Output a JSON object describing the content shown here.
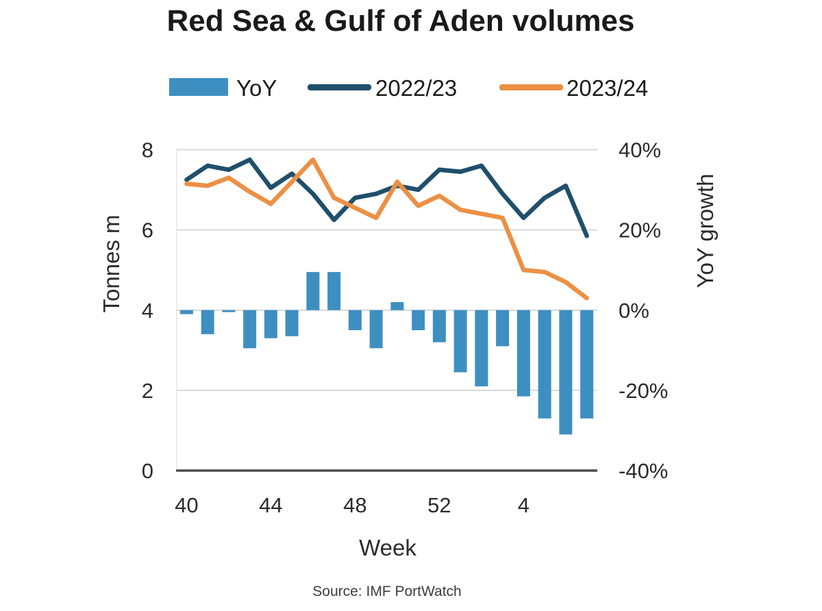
{
  "title": {
    "text": "Red Sea & Gulf of Aden volumes"
  },
  "legend": {
    "items": [
      {
        "label": "YoY",
        "type": "bar",
        "color": "#3e8fc1"
      },
      {
        "label": "2022/23",
        "type": "line",
        "color": "#1f4f6c"
      },
      {
        "label": "2023/24",
        "type": "line",
        "color": "#ec9044"
      }
    ]
  },
  "source": {
    "text": "Source: IMF PortWatch"
  },
  "chart_data": {
    "type": "combo-bar-line",
    "title": "Red Sea & Gulf of Aden volumes",
    "xlabel": "Week",
    "categories": [
      "40",
      "41",
      "42",
      "43",
      "44",
      "45",
      "46",
      "47",
      "48",
      "49",
      "50",
      "51",
      "52",
      "1",
      "2",
      "3",
      "4",
      "5",
      "6",
      "7"
    ],
    "x_ticks": {
      "labels": [
        "40",
        "44",
        "48",
        "52",
        "4"
      ],
      "indices": [
        0,
        4,
        8,
        12,
        16
      ]
    },
    "y_left": {
      "label": "Tonnes m",
      "ticks": [
        "8",
        "6",
        "4",
        "2",
        "0"
      ],
      "range": [
        0,
        8
      ],
      "grid": true
    },
    "y_right": {
      "label": "YoY growth",
      "ticks": [
        "40%",
        "20%",
        "0%",
        "-20%",
        "-40%"
      ],
      "range": [
        -40,
        40
      ]
    },
    "series": [
      {
        "name": "YoY",
        "type": "bar",
        "axis": "right",
        "unit": "%",
        "color": "#3e8fc1",
        "values": [
          -1,
          -6,
          -0.5,
          -9.5,
          -7,
          -6.5,
          9.5,
          9.5,
          -5,
          -9.5,
          2,
          -5,
          -8,
          -15.5,
          -19,
          -9,
          -21.5,
          -27,
          -31,
          -27
        ]
      },
      {
        "name": "2022/23",
        "type": "line",
        "axis": "left",
        "unit": "tonnes m",
        "color": "#1f4f6c",
        "values": [
          7.25,
          7.6,
          7.5,
          7.75,
          7.05,
          7.4,
          6.9,
          6.25,
          6.8,
          6.9,
          7.1,
          7.0,
          7.5,
          7.45,
          7.6,
          6.9,
          6.3,
          6.8,
          7.1,
          5.85
        ]
      },
      {
        "name": "2023/24",
        "type": "line",
        "axis": "left",
        "unit": "tonnes m",
        "color": "#ec9044",
        "values": [
          7.15,
          7.1,
          7.3,
          6.95,
          6.65,
          7.2,
          7.75,
          6.8,
          6.55,
          6.3,
          7.2,
          6.6,
          6.85,
          6.5,
          6.4,
          6.3,
          5.0,
          4.95,
          4.7,
          4.3
        ]
      }
    ],
    "legend_position": "top",
    "colors": {
      "grid": "#d9d9d9",
      "axis_line": "#4d4d4d",
      "tick_text": "#2b2b2b"
    }
  }
}
